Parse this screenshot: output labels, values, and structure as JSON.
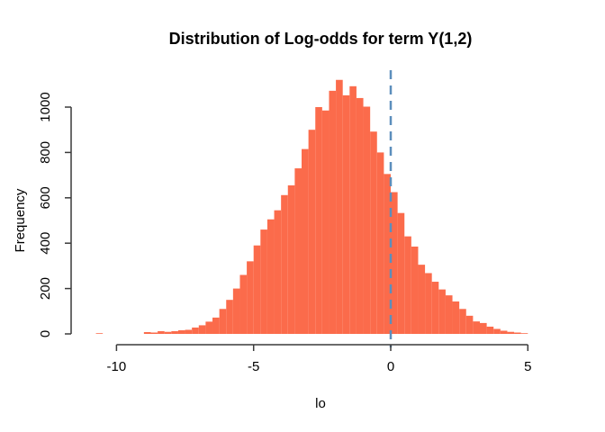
{
  "chart_data": {
    "type": "bar",
    "subtype": "histogram",
    "title": "Distribution of Log-odds for term Y(1,2)",
    "xlabel": "lo",
    "ylabel": "Frequency",
    "bar_color": "#FB6B4B",
    "axis_color": "#3a3a3a",
    "text_color": "#000000",
    "background_color": "#ffffff",
    "grid": "off",
    "legend": "none",
    "reference_line": {
      "x": 0,
      "color": "#5C8EBC",
      "style": "dashed"
    },
    "x_ticks": [
      -10,
      -5,
      0,
      5
    ],
    "y_ticks": [
      0,
      200,
      400,
      600,
      800,
      1000
    ],
    "xlim": [
      -11.4,
      5.6
    ],
    "ylim": [
      0,
      1165
    ],
    "bin_width": 0.25,
    "bin_left_edges": [
      -10.75,
      -10.5,
      -10.25,
      -10,
      -9.75,
      -9.5,
      -9.25,
      -9,
      -8.75,
      -8.5,
      -8.25,
      -8,
      -7.75,
      -7.5,
      -7.25,
      -7,
      -6.75,
      -6.5,
      -6.25,
      -6,
      -5.75,
      -5.5,
      -5.25,
      -5,
      -4.75,
      -4.5,
      -4.25,
      -4,
      -3.75,
      -3.5,
      -3.25,
      -3,
      -2.75,
      -2.5,
      -2.25,
      -2,
      -1.75,
      -1.5,
      -1.25,
      -1,
      -0.75,
      -0.5,
      -0.25,
      0,
      0.25,
      0.5,
      0.75,
      1,
      1.25,
      1.5,
      1.75,
      2,
      2.25,
      2.5,
      2.75,
      3,
      3.25,
      3.5,
      3.75,
      4,
      4.25,
      4.5,
      4.75
    ],
    "counts": [
      3,
      0,
      0,
      0,
      0,
      0,
      0,
      8,
      6,
      12,
      9,
      12,
      16,
      18,
      28,
      38,
      54,
      72,
      110,
      150,
      200,
      260,
      320,
      390,
      460,
      505,
      545,
      612,
      655,
      730,
      815,
      900,
      1000,
      985,
      1072,
      1120,
      1052,
      1092,
      1040,
      1002,
      892,
      800,
      705,
      625,
      533,
      430,
      385,
      305,
      268,
      230,
      196,
      170,
      143,
      110,
      80,
      55,
      48,
      32,
      22,
      14,
      9,
      6,
      3
    ]
  }
}
